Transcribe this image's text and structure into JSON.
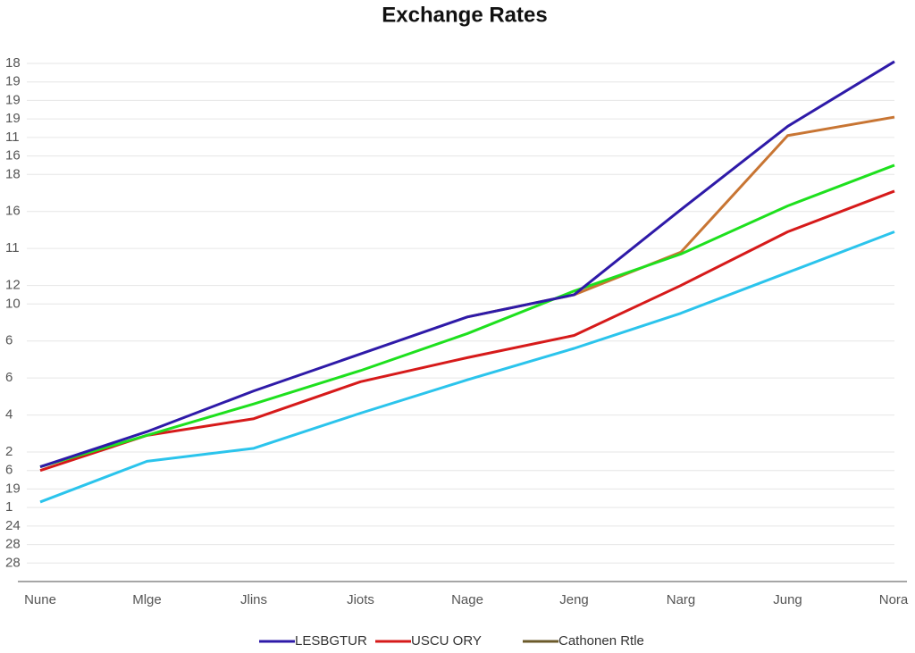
{
  "chart_data": {
    "type": "line",
    "title": "Exchange Rates",
    "categories": [
      "Nune",
      "Mlge",
      "Jlins",
      "Jiots",
      "Nage",
      "Jeng",
      "Narg",
      "Jung",
      "Nora"
    ],
    "ylim": [
      0,
      28
    ],
    "yticks": [
      {
        "value": 28,
        "label": "18"
      },
      {
        "value": 27,
        "label": "19"
      },
      {
        "value": 26,
        "label": "19"
      },
      {
        "value": 25,
        "label": "19"
      },
      {
        "value": 24,
        "label": "11"
      },
      {
        "value": 23,
        "label": "16"
      },
      {
        "value": 22,
        "label": "18"
      },
      {
        "value": 20,
        "label": "16"
      },
      {
        "value": 18,
        "label": "11"
      },
      {
        "value": 16,
        "label": "12"
      },
      {
        "value": 15,
        "label": "10"
      },
      {
        "value": 13,
        "label": "6"
      },
      {
        "value": 11,
        "label": "6"
      },
      {
        "value": 9,
        "label": "4"
      },
      {
        "value": 7,
        "label": "2"
      },
      {
        "value": 5,
        "label": "19"
      },
      {
        "value": 4,
        "label": "1"
      },
      {
        "value": 3,
        "label": "24"
      },
      {
        "value": 2,
        "label": "28"
      },
      {
        "value": 1,
        "label": "28"
      },
      6
    ],
    "grid": true,
    "legend": "bottom",
    "series": [
      {
        "color": "#2bc4ec",
        "values": [
          4.3,
          6.5,
          7.2,
          9.1,
          10.9,
          12.6,
          14.5,
          16.7,
          18.9
        ]
      },
      {
        "name": "USCU ORY",
        "color": "#d61a1a",
        "values": [
          6.0,
          7.9,
          8.8,
          10.8,
          12.1,
          13.3,
          16.0,
          18.9,
          21.1
        ]
      },
      {
        "name": "Cathonen Rtle",
        "color": "#c87533",
        "legend_color": "#6b5a2a",
        "values": [
          null,
          null,
          null,
          null,
          14.3,
          15.5,
          17.8,
          24.1,
          25.1
        ]
      },
      {
        "color": "#1ee01e",
        "values": [
          6.2,
          7.9,
          9.6,
          11.4,
          13.4,
          15.7,
          17.7,
          20.3,
          22.5
        ]
      },
      {
        "name": "LESBGTUR",
        "color": "#2e1aa8",
        "values": [
          6.2,
          8.1,
          10.3,
          12.3,
          14.3,
          15.5,
          20.1,
          24.6,
          28.1
        ]
      }
    ]
  }
}
